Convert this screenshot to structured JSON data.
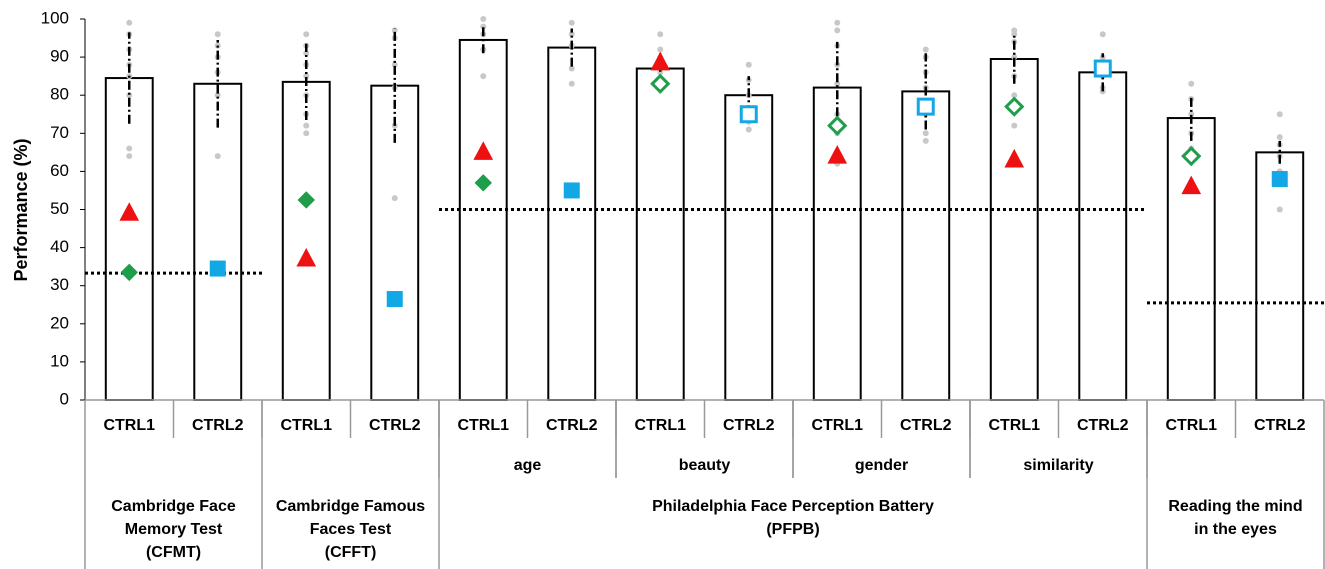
{
  "chart_data": {
    "type": "bar",
    "y_label": "Performance (%)",
    "categories": [
      "CTRL1",
      "CTRL2",
      "CTRL1",
      "CTRL2",
      "CTRL1",
      "CTRL2",
      "CTRL1",
      "CTRL2",
      "CTRL1",
      "CTRL2",
      "CTRL1",
      "CTRL2",
      "CTRL1",
      "CTRL2"
    ],
    "values": [
      84.5,
      83,
      83.5,
      82.5,
      94.5,
      92.5,
      87,
      80,
      82,
      81,
      89.5,
      86,
      74,
      65
    ],
    "errors": [
      12,
      11.5,
      10,
      15,
      3.5,
      5,
      4,
      5,
      12,
      10,
      6.5,
      5,
      6,
      3
    ],
    "color": "#ffffff",
    "controls": [
      [
        99,
        96,
        92,
        88,
        85,
        80,
        66,
        64
      ],
      [
        96,
        93,
        90,
        86,
        80,
        64
      ],
      [
        96,
        93,
        91,
        88,
        85,
        80,
        75,
        72,
        70
      ],
      [
        97,
        95,
        88,
        82,
        72,
        53
      ],
      [
        100,
        98,
        96,
        92,
        85
      ],
      [
        99,
        96,
        93,
        87,
        83
      ],
      [
        96,
        92,
        90,
        88,
        86,
        82
      ],
      [
        88,
        84,
        80,
        76,
        73,
        71
      ],
      [
        99,
        97,
        93,
        88,
        83,
        75,
        70,
        65,
        62
      ],
      [
        92,
        90,
        86,
        82,
        75,
        70,
        68
      ],
      [
        97,
        96,
        94,
        90,
        85,
        80,
        76,
        72
      ],
      [
        96,
        90,
        88,
        85,
        82,
        81
      ],
      [
        83,
        79,
        75,
        70,
        66,
        63
      ],
      [
        75,
        69,
        67,
        64,
        60,
        50
      ]
    ],
    "controls_color": "#c8c8c8",
    "series": [
      {
        "marker": "triangle",
        "color": "#ee1111",
        "values": [
          49,
          null,
          37,
          null,
          65,
          null,
          88.5,
          null,
          64,
          null,
          63,
          null,
          56,
          null
        ],
        "filled": [
          true,
          null,
          true,
          null,
          true,
          null,
          true,
          null,
          true,
          null,
          true,
          null,
          true,
          null
        ]
      },
      {
        "marker": "diamond",
        "color": "#1e9e4a",
        "values": [
          33.5,
          null,
          52.5,
          null,
          57,
          null,
          83,
          null,
          72,
          null,
          77,
          null,
          64,
          null
        ],
        "filled": [
          true,
          null,
          true,
          null,
          true,
          null,
          false,
          null,
          false,
          null,
          false,
          null,
          false,
          null
        ]
      },
      {
        "marker": "square",
        "color": "#12a8e6",
        "values": [
          null,
          34.5,
          null,
          26.5,
          null,
          55,
          null,
          75,
          null,
          77,
          null,
          87,
          null,
          58
        ],
        "filled": [
          null,
          true,
          null,
          true,
          null,
          true,
          null,
          false,
          null,
          false,
          null,
          false,
          null,
          true
        ]
      }
    ],
    "reference_lines": [
      {
        "value": 33.3,
        "from_category": 0,
        "to_category": 1
      },
      {
        "value": 50,
        "from_category": 4,
        "to_category": 11
      },
      {
        "value": 25.5,
        "from_category": 12,
        "to_category": 13
      }
    ],
    "subgroups": [
      {
        "label": "age",
        "start": 4,
        "span": 2
      },
      {
        "label": "beauty",
        "start": 6,
        "span": 2
      },
      {
        "label": "gender",
        "start": 8,
        "span": 2
      },
      {
        "label": "similarity",
        "start": 10,
        "span": 2
      }
    ],
    "groups": [
      {
        "label": [
          "Cambridge Face",
          "Memory Test",
          "(CFMT)"
        ],
        "span": 2
      },
      {
        "label": [
          "Cambridge Famous",
          "Faces Test",
          "(CFFT)"
        ],
        "span": 2
      },
      {
        "label": [
          "Philadelphia Face Perception Battery",
          "(PFPB)"
        ],
        "span": 8
      },
      {
        "label": [
          "Reading the mind",
          "in the eyes"
        ],
        "span": 2
      }
    ],
    "ylim": [
      0,
      100
    ],
    "yticks": [
      0,
      10,
      20,
      30,
      40,
      50,
      60,
      70,
      80,
      90,
      100
    ],
    "grid": false
  }
}
